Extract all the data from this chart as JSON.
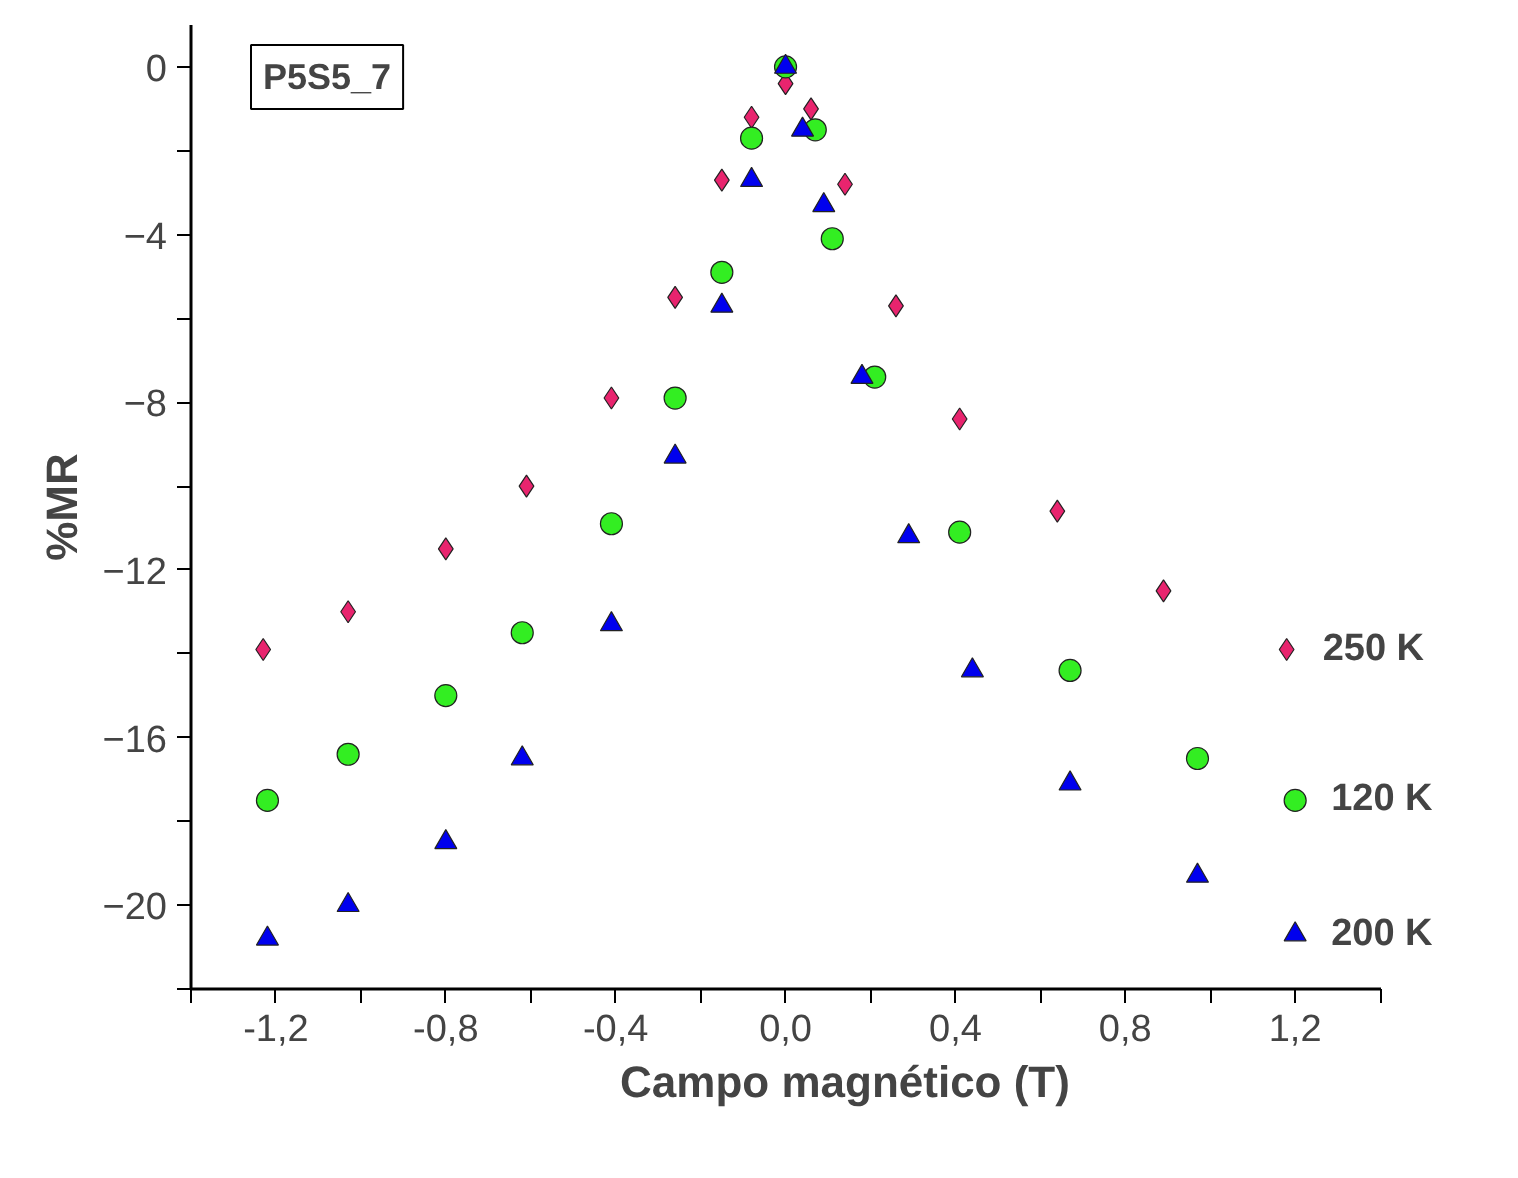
{
  "chart_data": {
    "type": "scatter",
    "xlabel": "Campo magnético (T)",
    "ylabel": "%MR",
    "annotations": [
      "P5S5_7"
    ],
    "xlim": [
      -1.4,
      1.4
    ],
    "ylim": [
      -22,
      1
    ],
    "xticks": [
      {
        "value": -1.4,
        "label": null
      },
      {
        "value": -1.2,
        "label": "-1,2"
      },
      {
        "value": -1.0,
        "label": null
      },
      {
        "value": -0.8,
        "label": "-0,8"
      },
      {
        "value": -0.6,
        "label": null
      },
      {
        "value": -0.4,
        "label": "-0,4"
      },
      {
        "value": -0.2,
        "label": null
      },
      {
        "value": 0,
        "label": "0,0"
      },
      {
        "value": 0.2,
        "label": null
      },
      {
        "value": 0.4,
        "label": "0,4"
      },
      {
        "value": 0.6,
        "label": null
      },
      {
        "value": 0.8,
        "label": "0,8"
      },
      {
        "value": 1.0,
        "label": null
      },
      {
        "value": 1.2,
        "label": "1,2"
      },
      {
        "value": 1.4,
        "label": null
      }
    ],
    "yticks": [
      0,
      {
        "value": -2,
        "label": null
      },
      -4,
      {
        "value": -6,
        "label": null
      },
      -8,
      {
        "value": -10,
        "label": null
      },
      -12,
      {
        "value": -14,
        "label": null
      },
      -16,
      {
        "value": -18,
        "label": null
      },
      -20,
      {
        "value": -22,
        "label": null
      }
    ],
    "grid": false,
    "series": [
      {
        "name": "250 K",
        "color": "#e8246e",
        "marker": "diamond",
        "x": [
          -1.23,
          -1.03,
          -0.8,
          -0.61,
          -0.41,
          -0.26,
          -0.15,
          -0.08,
          0,
          0.06,
          0.14,
          0.26,
          0.41,
          0.64,
          0.89,
          1.18
        ],
        "values": [
          -13.9,
          -13.0,
          -11.5,
          -10.0,
          -7.9,
          -5.5,
          -2.7,
          -1.2,
          -0.4,
          -1.0,
          -2.8,
          -5.7,
          -8.4,
          -10.6,
          -12.5,
          -13.9
        ]
      },
      {
        "name": "120 K",
        "color": "#33ee22",
        "marker": "circle",
        "x": [
          -1.22,
          -1.03,
          -0.8,
          -0.62,
          -0.41,
          -0.26,
          -0.15,
          -0.08,
          0,
          0.07,
          0.11,
          0.21,
          0.41,
          0.67,
          0.97,
          1.2
        ],
        "values": [
          -17.5,
          -16.4,
          -15.0,
          -13.5,
          -10.9,
          -7.9,
          -4.9,
          -1.7,
          0,
          -1.5,
          -4.1,
          -7.4,
          -11.1,
          -14.4,
          -16.5,
          -17.5
        ]
      },
      {
        "name": "200 K",
        "color": "#0000ee",
        "marker": "triangle",
        "x": [
          -1.22,
          -1.03,
          -0.8,
          -0.62,
          -0.41,
          -0.26,
          -0.15,
          -0.08,
          0,
          0.04,
          0.09,
          0.18,
          0.29,
          0.44,
          0.67,
          0.97,
          1.2
        ],
        "values": [
          -20.8,
          -20.0,
          -18.5,
          -16.5,
          -13.3,
          -9.3,
          -5.7,
          -2.7,
          0,
          -1.5,
          -3.3,
          -7.4,
          -11.2,
          -14.4,
          -17.1,
          -19.3,
          -20.7
        ]
      }
    ]
  }
}
